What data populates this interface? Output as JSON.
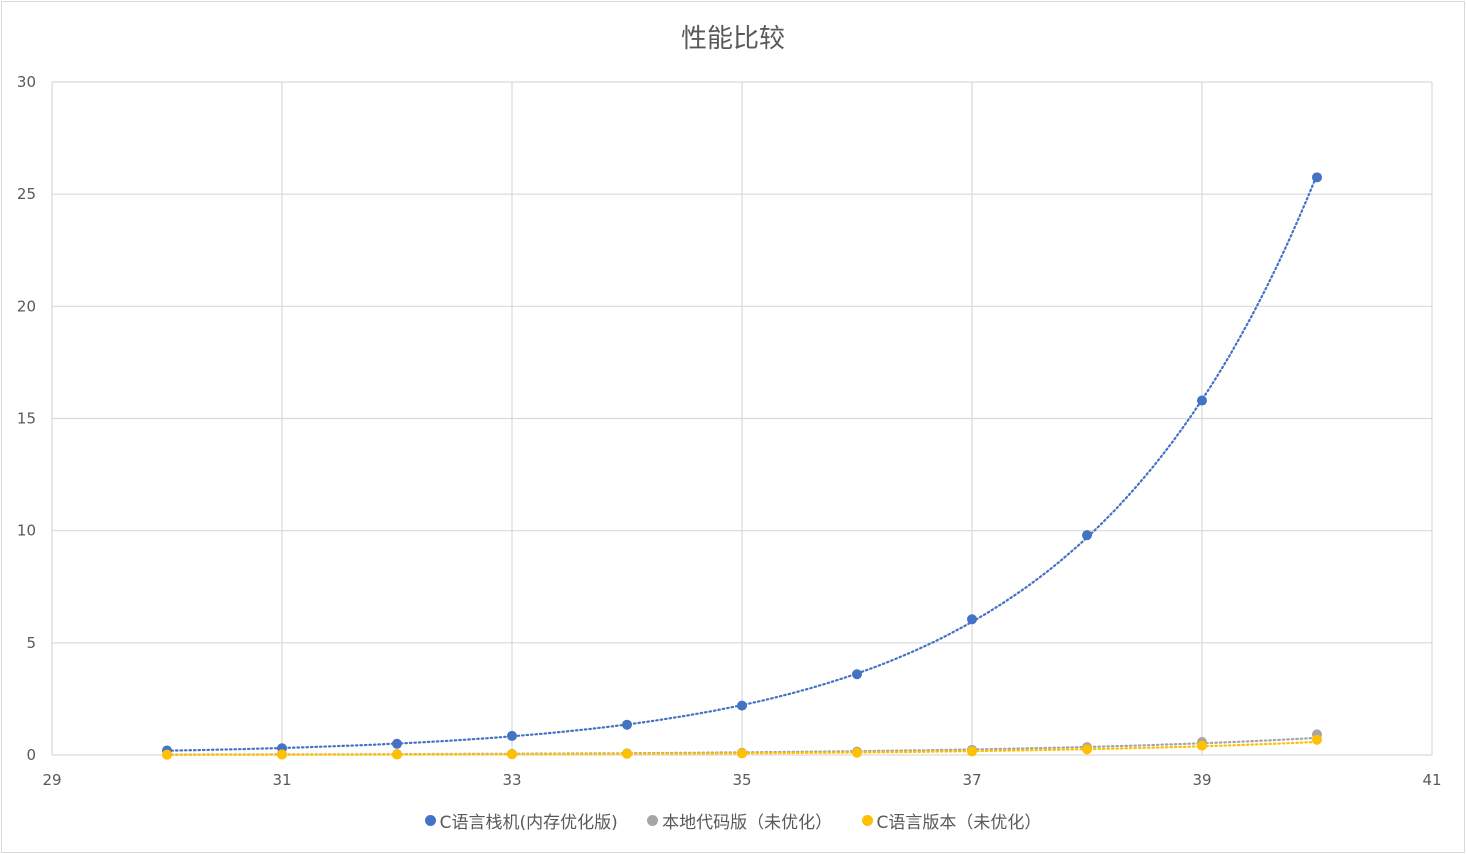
{
  "chart_data": {
    "type": "scatter",
    "title": "性能比较",
    "xlabel": "",
    "ylabel": "",
    "xlim": [
      29,
      41
    ],
    "ylim": [
      0,
      30
    ],
    "x_ticks": [
      "29",
      "31",
      "33",
      "35",
      "37",
      "39",
      "41"
    ],
    "y_ticks": [
      "0",
      "5",
      "10",
      "15",
      "20",
      "25",
      "30"
    ],
    "grid": true,
    "legend_position": "bottom",
    "trendline": "exponential, dotted",
    "series": [
      {
        "name": "C语言栈机(内存优化版)",
        "color": "#4472C4",
        "x": [
          30,
          31,
          32,
          33,
          34,
          35,
          36,
          37,
          38,
          39,
          40
        ],
        "y": [
          0.2,
          0.3,
          0.5,
          0.85,
          1.35,
          2.2,
          3.6,
          6.05,
          9.8,
          15.8,
          25.75
        ]
      },
      {
        "name": "本地代码版（未优化）",
        "color": "#A5A5A5",
        "x": [
          30,
          31,
          32,
          33,
          34,
          35,
          36,
          37,
          38,
          39,
          40
        ],
        "y": [
          0.02,
          0.03,
          0.04,
          0.05,
          0.07,
          0.1,
          0.15,
          0.23,
          0.35,
          0.58,
          0.92
        ]
      },
      {
        "name": "C语言版本（未优化）",
        "color": "#FFC000",
        "x": [
          30,
          31,
          32,
          33,
          34,
          35,
          36,
          37,
          38,
          39,
          40
        ],
        "y": [
          0.01,
          0.02,
          0.02,
          0.03,
          0.05,
          0.07,
          0.1,
          0.16,
          0.25,
          0.42,
          0.68
        ]
      }
    ]
  }
}
